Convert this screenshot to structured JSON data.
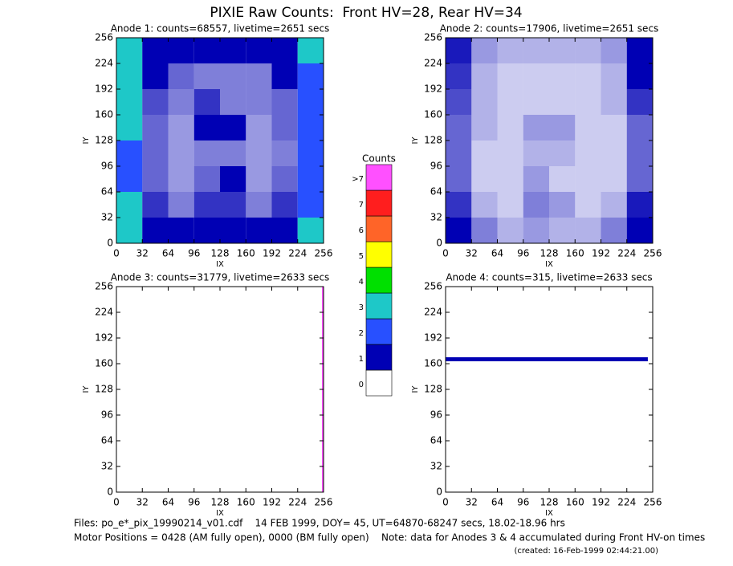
{
  "title": "PIXIE Raw Counts:  Front HV=28, Rear HV=34",
  "chart_data": [
    {
      "type": "heatmap",
      "title": "Anode 1: counts=68557, livetime=2651 secs",
      "xlabel": "IX",
      "ylabel": "IY",
      "xlim": [
        0,
        256
      ],
      "ylim": [
        0,
        256
      ],
      "xticks": [
        0,
        32,
        64,
        96,
        128,
        160,
        192,
        224,
        256
      ],
      "yticks": [
        0,
        32,
        64,
        96,
        128,
        160,
        192,
        224,
        256
      ],
      "xbins": [
        0,
        32,
        64,
        96,
        128,
        160,
        192,
        224,
        256
      ],
      "ybins": [
        0,
        32,
        64,
        96,
        128,
        160,
        192,
        224,
        256
      ],
      "z": [
        [
          3,
          1.5,
          1,
          1.2,
          1,
          1,
          1.5,
          3
        ],
        [
          3,
          0.8,
          0.5,
          0.8,
          0.8,
          0.5,
          0.8,
          2.5
        ],
        [
          2.5,
          0.6,
          0.4,
          0.6,
          1,
          0.4,
          0.6,
          2
        ],
        [
          2.5,
          0.6,
          0.4,
          0.5,
          0.5,
          0.4,
          0.5,
          2
        ],
        [
          3,
          0.6,
          0.4,
          1,
          1,
          0.4,
          0.6,
          2
        ],
        [
          3,
          0.7,
          0.5,
          0.8,
          0.5,
          0.5,
          0.6,
          2.5
        ],
        [
          3,
          1,
          0.6,
          0.5,
          0.5,
          0.5,
          1,
          2.5
        ],
        [
          3.5,
          1.5,
          1,
          1,
          1,
          1,
          1.5,
          3
        ]
      ]
    },
    {
      "type": "heatmap",
      "title": "Anode 2: counts=17906, livetime=2651 secs",
      "xlabel": "IX",
      "ylabel": "IY",
      "xlim": [
        0,
        256
      ],
      "ylim": [
        0,
        256
      ],
      "xticks": [
        0,
        32,
        64,
        96,
        128,
        160,
        192,
        224,
        256
      ],
      "yticks": [
        0,
        32,
        64,
        96,
        128,
        160,
        192,
        224,
        256
      ],
      "xbins": [
        0,
        32,
        64,
        96,
        128,
        160,
        192,
        224,
        256
      ],
      "ybins": [
        0,
        32,
        64,
        96,
        128,
        160,
        192,
        224,
        256
      ],
      "z": [
        [
          1.2,
          0.5,
          0.3,
          0.4,
          0.3,
          0.3,
          0.5,
          1.2
        ],
        [
          0.8,
          0.3,
          0.2,
          0.5,
          0.4,
          0.2,
          0.3,
          0.9
        ],
        [
          0.6,
          0.2,
          0.2,
          0.4,
          0.2,
          0.2,
          0.2,
          0.6
        ],
        [
          0.6,
          0.2,
          0.2,
          0.3,
          0.3,
          0.2,
          0.2,
          0.6
        ],
        [
          0.6,
          0.3,
          0.2,
          0.4,
          0.4,
          0.2,
          0.2,
          0.6
        ],
        [
          0.7,
          0.3,
          0.2,
          0.2,
          0.2,
          0.2,
          0.3,
          0.8
        ],
        [
          0.8,
          0.3,
          0.2,
          0.2,
          0.2,
          0.2,
          0.3,
          1
        ],
        [
          0.9,
          0.4,
          0.3,
          0.3,
          0.3,
          0.3,
          0.4,
          1.2
        ]
      ]
    },
    {
      "type": "heatmap",
      "title": "Anode 3: counts=31779, livetime=2633 secs",
      "xlabel": "IX",
      "ylabel": "IY",
      "xlim": [
        0,
        256
      ],
      "ylim": [
        0,
        256
      ],
      "xticks": [
        0,
        32,
        64,
        96,
        128,
        160,
        192,
        224,
        256
      ],
      "yticks": [
        0,
        32,
        64,
        96,
        128,
        160,
        192,
        224,
        256
      ],
      "xbins": [
        0,
        254,
        256
      ],
      "ybins": [
        0,
        256
      ],
      "z": [
        [
          0,
          9
        ]
      ]
    },
    {
      "type": "heatmap",
      "title": "Anode 4: counts=315, livetime=2633 secs",
      "xlabel": "IX",
      "ylabel": "IY",
      "xlim": [
        0,
        256
      ],
      "ylim": [
        0,
        256
      ],
      "xticks": [
        0,
        32,
        64,
        96,
        128,
        160,
        192,
        224,
        256
      ],
      "yticks": [
        0,
        32,
        64,
        96,
        128,
        160,
        192,
        224,
        256
      ],
      "xbins": [
        0,
        250,
        256
      ],
      "ybins": [
        0,
        163,
        168,
        256
      ],
      "z": [
        [
          0,
          0
        ],
        [
          1,
          0
        ],
        [
          0,
          0
        ]
      ]
    }
  ],
  "colorbar": {
    "title": "Counts",
    "levels": [
      0,
      1,
      2,
      3,
      4,
      5,
      6,
      7,
      {
        "value": 8,
        "label": ">7"
      }
    ],
    "colors": [
      "#ffffff",
      "#0000b4",
      "#2850ff",
      "#1ec8c8",
      "#00e000",
      "#ffff00",
      "#ff6428",
      "#ff1e1e",
      "#ff50ff"
    ]
  },
  "footer": {
    "files": "Files: po_e*_pix_19990214_v01.cdf    14 FEB 1999, DOY= 45, UT=64870-68247 secs, 18.02-18.96 hrs",
    "motor": "Motor Positions = 0428 (AM fully open), 0000 (BM fully open)    Note: data for Anodes 3 & 4 accumulated during Front HV-on times",
    "created": "(created: 16-Feb-1999 02:44:21.00)"
  }
}
